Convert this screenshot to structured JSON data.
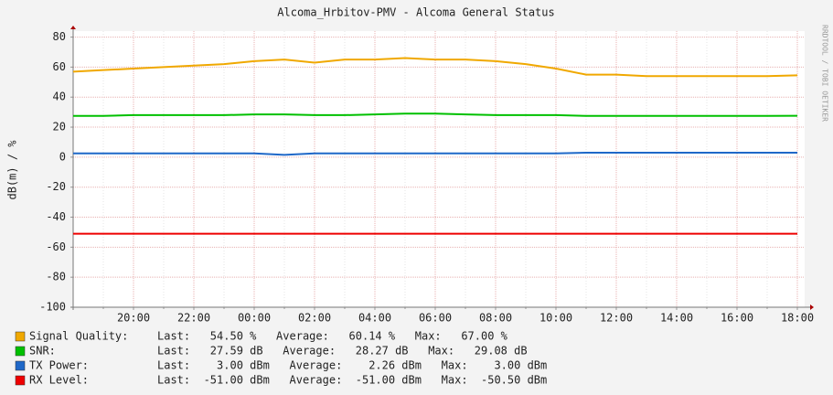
{
  "chart_data": {
    "type": "line",
    "title": "Alcoma_Hrbitov-PMV - Alcoma General Status",
    "y_label": "dB(m) / %",
    "watermark": "RRDTOOL / TOBI OETIKER",
    "categories": [
      null,
      null,
      "20:00",
      null,
      "22:00",
      null,
      "00:00",
      null,
      "02:00",
      null,
      "04:00",
      null,
      "06:00",
      null,
      "08:00",
      null,
      "10:00",
      null,
      "12:00",
      null,
      "14:00",
      null,
      "16:00",
      null,
      "18:00"
    ],
    "ylim": [
      -100,
      84
    ],
    "yticks": [
      -100,
      -80,
      -60,
      -40,
      -20,
      0,
      20,
      40,
      60,
      80
    ],
    "grid": true,
    "series": [
      {
        "name": "Signal Quality:",
        "color": "#f0a800",
        "stats": "Last:   54.50 %   Average:   60.14 %   Max:   67.00 %",
        "values": [
          57,
          58,
          59,
          60,
          61,
          62,
          64,
          65,
          63,
          65,
          65,
          66,
          65,
          65,
          64,
          62,
          59,
          55,
          55,
          54,
          54,
          54,
          54,
          54,
          54.5
        ]
      },
      {
        "name": "SNR:",
        "color": "#00c000",
        "stats": "Last:   27.59 dB   Average:   28.27 dB   Max:   29.08 dB",
        "values": [
          27.5,
          27.5,
          28,
          28,
          28,
          28,
          28.5,
          28.5,
          28,
          28,
          28.5,
          29,
          29,
          28.5,
          28,
          28,
          28,
          27.5,
          27.5,
          27.5,
          27.5,
          27.5,
          27.5,
          27.5,
          27.59
        ]
      },
      {
        "name": "TX Power:",
        "color": "#1f68c8",
        "stats": "Last:    3.00 dBm   Average:    2.26 dBm   Max:    3.00 dBm",
        "values": [
          2.5,
          2.5,
          2.5,
          2.5,
          2.5,
          2.5,
          2.5,
          1.5,
          2.5,
          2.5,
          2.5,
          2.5,
          2.5,
          2.5,
          2.5,
          2.5,
          2.5,
          3,
          3,
          3,
          3,
          3,
          3,
          3,
          3
        ]
      },
      {
        "name": "RX Level:",
        "color": "#ee0000",
        "stats": "Last:  -51.00 dBm   Average:  -51.00 dBm   Max:  -50.50 dBm",
        "values": [
          -51,
          -51,
          -51,
          -51,
          -51,
          -51,
          -51,
          -51,
          -51,
          -51,
          -51,
          -51,
          -51,
          -51,
          -51,
          -51,
          -51,
          -51,
          -51,
          -51,
          -51,
          -51,
          -51,
          -51,
          -51
        ]
      }
    ]
  }
}
